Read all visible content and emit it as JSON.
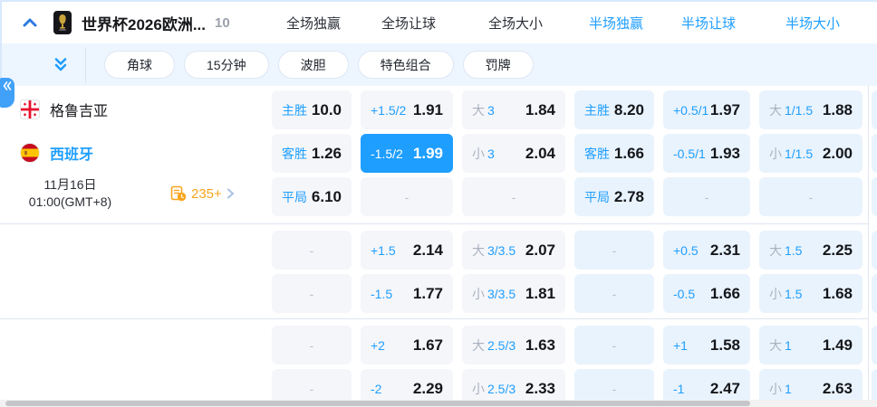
{
  "header": {
    "title": "世界杯2026欧洲...",
    "match_count": "10",
    "markets": [
      {
        "label": "全场独赢",
        "scope": "full"
      },
      {
        "label": "全场让球",
        "scope": "full"
      },
      {
        "label": "全场大小",
        "scope": "full"
      },
      {
        "label": "半场独赢",
        "scope": "half"
      },
      {
        "label": "半场让球",
        "scope": "half"
      },
      {
        "label": "半场大小",
        "scope": "half"
      }
    ]
  },
  "toolbar": {
    "pills": [
      "角球",
      "15分钟",
      "波胆",
      "特色组合",
      "罚牌"
    ]
  },
  "match": {
    "home_team": "格鲁吉亚",
    "away_team": "西班牙",
    "date": "11月16日",
    "time": "01:00(GMT+8)",
    "more_markets_count": "235+"
  },
  "odds": {
    "groups": [
      {
        "rows": [
          [
            {
              "blue": "主胜",
              "value": "10.0"
            },
            {
              "blue": "+1.5/2",
              "value": "1.91"
            },
            {
              "gray": "大",
              "blue": "3",
              "value": "1.84"
            },
            {
              "blue": "主胜",
              "value": "8.20"
            },
            {
              "blue": "+0.5/1",
              "value": "1.97"
            },
            {
              "gray": "大",
              "blue": "1/1.5",
              "value": "1.88"
            }
          ],
          [
            {
              "blue": "客胜",
              "value": "1.26"
            },
            {
              "blue": "-1.5/2",
              "value": "1.99",
              "highlighted": true
            },
            {
              "gray": "小",
              "blue": "3",
              "value": "2.04"
            },
            {
              "blue": "客胜",
              "value": "1.66"
            },
            {
              "blue": "-0.5/1",
              "value": "1.93"
            },
            {
              "gray": "小",
              "blue": "1/1.5",
              "value": "2.00"
            }
          ],
          [
            {
              "blue": "平局",
              "value": "6.10"
            },
            {
              "dash": true
            },
            {
              "dash": true
            },
            {
              "blue": "平局",
              "value": "2.78"
            },
            {
              "dash": true
            },
            {
              "dash": true
            }
          ]
        ]
      },
      {
        "rows": [
          [
            {
              "dash": true
            },
            {
              "blue": "+1.5",
              "value": "2.14"
            },
            {
              "gray": "大",
              "blue": "3/3.5",
              "value": "2.07"
            },
            {
              "dash": true
            },
            {
              "blue": "+0.5",
              "value": "2.31"
            },
            {
              "gray": "大",
              "blue": "1.5",
              "value": "2.25"
            }
          ],
          [
            {
              "dash": true
            },
            {
              "blue": "-1.5",
              "value": "1.77"
            },
            {
              "gray": "小",
              "blue": "3/3.5",
              "value": "1.81"
            },
            {
              "dash": true
            },
            {
              "blue": "-0.5",
              "value": "1.66"
            },
            {
              "gray": "小",
              "blue": "1.5",
              "value": "1.68"
            }
          ]
        ]
      },
      {
        "rows": [
          [
            {
              "dash": true
            },
            {
              "blue": "+2",
              "value": "1.67"
            },
            {
              "gray": "大",
              "blue": "2.5/3",
              "value": "1.63"
            },
            {
              "dash": true
            },
            {
              "blue": "+1",
              "value": "1.58"
            },
            {
              "gray": "大",
              "blue": "1",
              "value": "1.49"
            }
          ],
          [
            {
              "dash": true
            },
            {
              "blue": "-2",
              "value": "2.29"
            },
            {
              "gray": "小",
              "blue": "2.5/3",
              "value": "2.33"
            },
            {
              "dash": true
            },
            {
              "blue": "-1",
              "value": "2.47"
            },
            {
              "gray": "小",
              "blue": "1",
              "value": "2.63"
            }
          ]
        ]
      }
    ]
  },
  "colors": {
    "accent_blue": "#1e9eff",
    "highlight_cell_bg": "#1e9eff",
    "full_cell_bg": "#f5f6fa",
    "half_cell_bg": "#e9f3fd",
    "toolbar_bg": "#edf6ff",
    "orange": "#f9a51f",
    "gray_label": "#a9b1bf"
  }
}
